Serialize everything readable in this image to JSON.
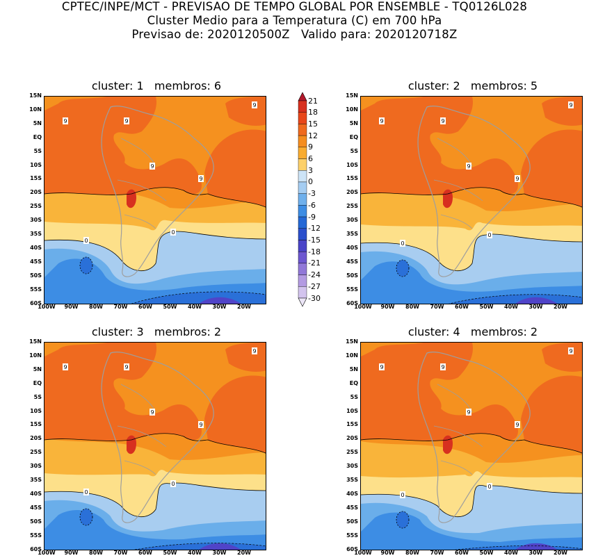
{
  "header": {
    "line1": "CPTEC/INPE/MCT - PREVISAO DE TEMPO GLOBAL POR ENSEMBLE - TQ0126L028",
    "line2": "Cluster Medio para a Temperatura (C) em 700 hPa",
    "line3": "Previsao de: 2020120500Z   Valido para: 2020120718Z"
  },
  "panels": [
    {
      "title": "cluster: 1   membros: 6"
    },
    {
      "title": "cluster: 2   membros: 5"
    },
    {
      "title": "cluster: 3   membros: 2"
    },
    {
      "title": "cluster: 4   membros: 2"
    }
  ],
  "lat_ticks": [
    "15N",
    "10N",
    "5N",
    "EQ",
    "5S",
    "10S",
    "15S",
    "20S",
    "25S",
    "30S",
    "35S",
    "40S",
    "45S",
    "50S",
    "55S",
    "60S"
  ],
  "lon_ticks": [
    "100W",
    "90W",
    "80W",
    "70W",
    "60W",
    "50W",
    "40W",
    "30W",
    "20W"
  ],
  "colorbar": {
    "labels": [
      "21",
      "18",
      "15",
      "12",
      "9",
      "6",
      "3",
      "0",
      "-3",
      "-6",
      "-9",
      "-12",
      "-15",
      "-18",
      "-21",
      "-24",
      "-27",
      "-30"
    ],
    "colors": [
      "#b2182b",
      "#d7301f",
      "#e8471b",
      "#ef6a1f",
      "#f58d1f",
      "#f9ac30",
      "#fcd06a",
      "#cde4f7",
      "#a5cdf2",
      "#6fb0ec",
      "#3d8de4",
      "#2468d6",
      "#2a4fcc",
      "#4a44c8",
      "#6d57d0",
      "#9178d8",
      "#b39be2",
      "#d3c4ee",
      "#ece6f7"
    ]
  },
  "contour_labels": {
    "warm": "9",
    "zero": "0"
  },
  "palette": {
    "hot": "#d7301f",
    "h9": "#ef6a1f",
    "h6": "#f5911f",
    "h3": "#f9b43a",
    "h0": "#fde08a",
    "c0": "#a8cdf0",
    "c3": "#6aaeea",
    "c6": "#3d8de4",
    "c9": "#2a70d8",
    "c12": "#5044c8",
    "land": "#9e9e9e"
  }
}
